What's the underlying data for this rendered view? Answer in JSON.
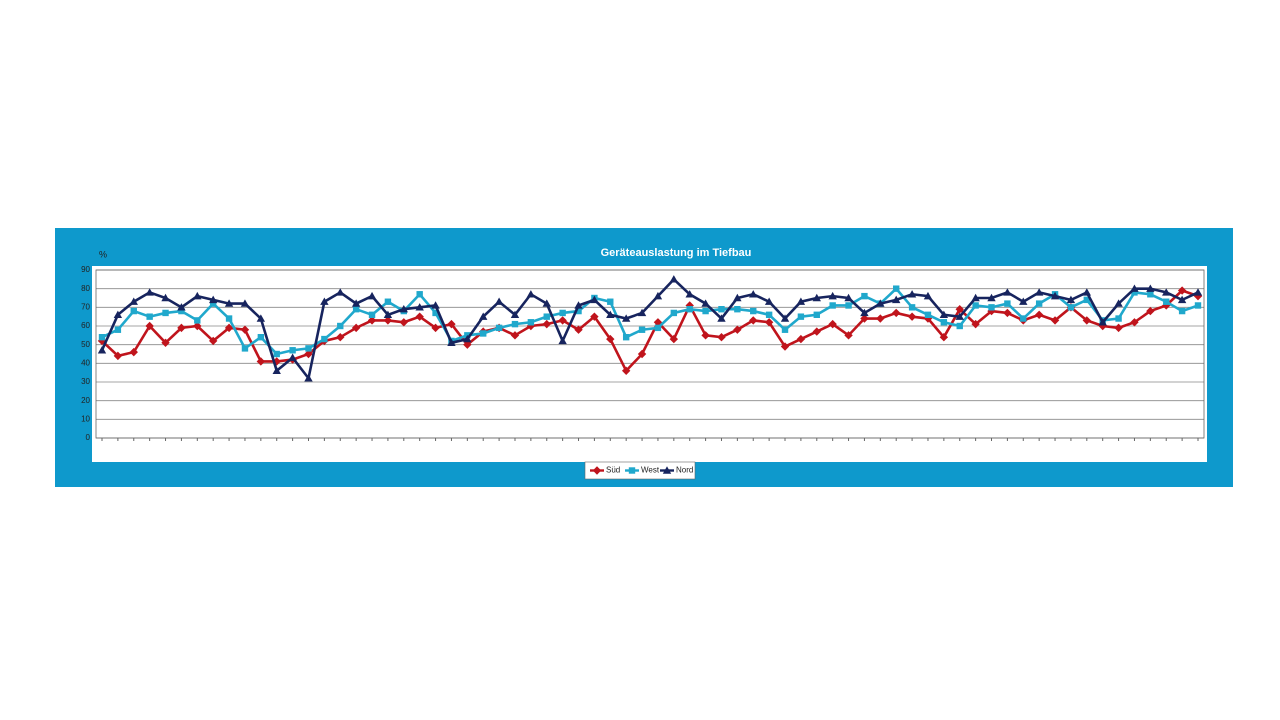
{
  "chart_data": {
    "type": "line",
    "title": "Geräteauslastung im Tiefbau",
    "y_label": "%",
    "categories": [
      null,
      null,
      null,
      null,
      null,
      null,
      null,
      null,
      null,
      null,
      null,
      null,
      null,
      null,
      null,
      null,
      null,
      null,
      null,
      null,
      null,
      null,
      null,
      null,
      null,
      null,
      null,
      null,
      null,
      null,
      null,
      null,
      null,
      null,
      null,
      null,
      null,
      null,
      null,
      null,
      null,
      null,
      null,
      null,
      null,
      null,
      null,
      null,
      null,
      null,
      null,
      null,
      null,
      null,
      null,
      null,
      null,
      null,
      null,
      null,
      null,
      null,
      null,
      null,
      null,
      null,
      null,
      null,
      null,
      null
    ],
    "series": [
      {
        "name": "Süd",
        "color": "#c0141c",
        "marker": "diamond",
        "values": [
          52,
          44,
          46,
          60,
          51,
          59,
          60,
          52,
          59,
          58,
          41,
          41,
          42,
          45,
          52,
          54,
          59,
          63,
          63,
          62,
          65,
          59,
          61,
          50,
          57,
          59,
          55,
          60,
          61,
          63,
          58,
          65,
          53,
          36,
          45,
          62,
          53,
          71,
          55,
          54,
          58,
          63,
          62,
          49,
          53,
          57,
          61,
          55,
          64,
          64,
          67,
          65,
          64,
          54,
          69,
          61,
          68,
          67,
          63,
          66,
          63,
          70,
          63,
          60,
          59,
          62,
          68,
          71,
          79,
          76
        ]
      },
      {
        "name": "West",
        "color": "#20a8cc",
        "marker": "square",
        "values": [
          54,
          58,
          68,
          65,
          67,
          68,
          63,
          72,
          64,
          48,
          54,
          45,
          47,
          48,
          53,
          60,
          69,
          66,
          73,
          68,
          77,
          67,
          52,
          55,
          56,
          59,
          61,
          62,
          65,
          67,
          68,
          75,
          73,
          54,
          58,
          59,
          67,
          69,
          68,
          69,
          69,
          68,
          66,
          58,
          65,
          66,
          71,
          71,
          76,
          72,
          80,
          70,
          66,
          62,
          60,
          71,
          70,
          72,
          64,
          72,
          77,
          70,
          74,
          63,
          64,
          78,
          77,
          73,
          68,
          71
        ]
      },
      {
        "name": "Nord",
        "color": "#17245e",
        "marker": "triangle",
        "values": [
          47,
          66,
          73,
          78,
          75,
          70,
          76,
          74,
          72,
          72,
          64,
          36,
          43,
          32,
          73,
          78,
          72,
          76,
          66,
          69,
          70,
          71,
          51,
          53,
          65,
          73,
          66,
          77,
          72,
          52,
          71,
          74,
          66,
          64,
          67,
          76,
          85,
          77,
          72,
          64,
          75,
          77,
          73,
          64,
          73,
          75,
          76,
          75,
          67,
          72,
          74,
          77,
          76,
          66,
          65,
          75,
          75,
          78,
          73,
          78,
          76,
          74,
          78,
          62,
          72,
          80,
          80,
          78,
          74,
          78
        ]
      }
    ],
    "ylim": [
      0,
      90
    ],
    "yticks": [
      0,
      10,
      20,
      30,
      40,
      50,
      60,
      70,
      80,
      90
    ],
    "grid": true,
    "legend": "bottom"
  }
}
